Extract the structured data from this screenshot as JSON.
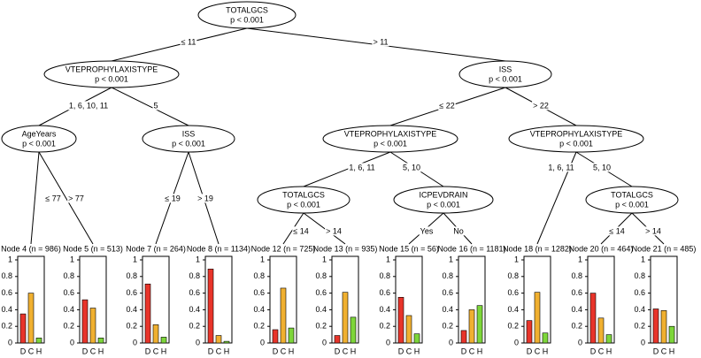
{
  "nodes": [
    {
      "label": "TOTALGCS",
      "p": "p < 0.001"
    },
    {
      "label": "VTEPROPHYLAXISTYPE",
      "p": "p < 0.001"
    },
    {
      "label": "ISS",
      "p": "p < 0.001"
    },
    {
      "label": "AgeYears",
      "p": "p < 0.001"
    },
    {
      "label": "ISS",
      "p": "p < 0.001"
    },
    {
      "label": "VTEPROPHYLAXISTYPE",
      "p": "p < 0.001"
    },
    {
      "label": "VTEPROPHYLAXISTYPE",
      "p": "p < 0.001"
    },
    {
      "label": "TOTALGCS",
      "p": "p < 0.001"
    },
    {
      "label": "ICPEVDRAIN",
      "p": "p < 0.001"
    },
    {
      "label": "TOTALGCS",
      "p": "p < 0.001"
    }
  ],
  "edges": [
    {
      "label": "≤ 11"
    },
    {
      "label": "> 11"
    },
    {
      "label": "1, 6, 10, 11"
    },
    {
      "label": "5"
    },
    {
      "label": "≤ 22"
    },
    {
      "label": "> 22"
    },
    {
      "label": "≤ 77"
    },
    {
      "label": "> 77"
    },
    {
      "label": "≤ 19"
    },
    {
      "label": "> 19"
    },
    {
      "label": "1, 6, 11"
    },
    {
      "label": "5, 10"
    },
    {
      "label": "1, 6, 11"
    },
    {
      "label": "5, 10"
    },
    {
      "label": "≤ 14"
    },
    {
      "label": "> 14"
    },
    {
      "label": "Yes"
    },
    {
      "label": "No"
    },
    {
      "label": "≤ 14"
    },
    {
      "label": "> 14"
    }
  ],
  "terminals": {
    "categories": [
      "D",
      "C",
      "H"
    ],
    "colors": [
      "#e8342a",
      "#f0b030",
      "#7dd63a"
    ],
    "ylim": [
      0,
      1
    ],
    "yticks": [
      0,
      0.2,
      0.4,
      0.6,
      0.8,
      1
    ],
    "nodes": [
      {
        "title": "Node 4 (n = 986)",
        "values": [
          0.35,
          0.6,
          0.06
        ]
      },
      {
        "title": "Node 5 (n = 513)",
        "values": [
          0.52,
          0.42,
          0.06
        ]
      },
      {
        "title": "Node 7 (n = 264)",
        "values": [
          0.71,
          0.22,
          0.07
        ]
      },
      {
        "title": "Node 8 (n = 1134)",
        "values": [
          0.89,
          0.09,
          0.02
        ]
      },
      {
        "title": "Node 12 (n = 725)",
        "values": [
          0.16,
          0.66,
          0.18
        ]
      },
      {
        "title": "Node 13 (n = 935)",
        "values": [
          0.09,
          0.61,
          0.31
        ]
      },
      {
        "title": "Node 15 (n = 56)",
        "values": [
          0.55,
          0.33,
          0.11
        ]
      },
      {
        "title": "Node 16 (n = 1181)",
        "values": [
          0.15,
          0.4,
          0.45
        ]
      },
      {
        "title": "Node 18 (n = 1282)",
        "values": [
          0.27,
          0.61,
          0.12
        ]
      },
      {
        "title": "Node 20 (n = 464)",
        "values": [
          0.6,
          0.3,
          0.1
        ]
      },
      {
        "title": "Node 21 (n = 485)",
        "values": [
          0.41,
          0.39,
          0.2
        ]
      }
    ]
  }
}
